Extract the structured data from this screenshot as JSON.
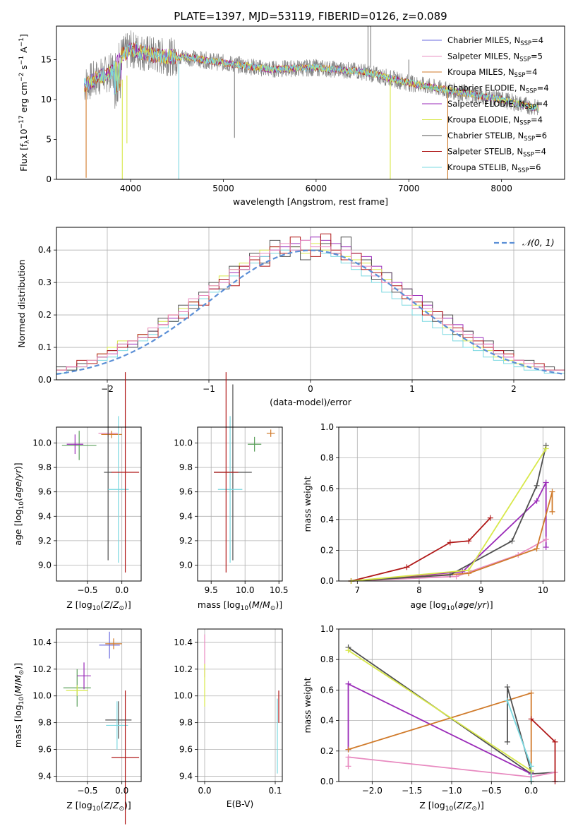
{
  "figure_title": "PLATE=1397, MJD=53119, FIBERID=0126, z=0.089",
  "colors": {
    "chabrier_miles": "#6a6adf",
    "salpeter_miles": "#e88ac0",
    "kroupa_miles": "#d07a2a",
    "chabrier_elodie": "#5aa05a",
    "salpeter_elodie": "#9a2ab8",
    "kroupa_elodie": "#d8e84a",
    "chabrier_stelib": "#505050",
    "salpeter_stelib": "#b01818",
    "kroupa_stelib": "#7ad8e0",
    "data_gray": "#808080",
    "normal_curve": "#5b8fd6"
  },
  "chart_data": [
    {
      "type": "line",
      "title": "PLATE=1397, MJD=53119, FIBERID=0126, z=0.089",
      "xlabel": "wavelength [Angstrom, rest frame]",
      "ylabel": "Flux [f_λ 10^-17 erg cm^-2 s^-1 A^-1]",
      "xlim": [
        3200,
        8680
      ],
      "ylim": [
        0,
        19.2
      ],
      "xticks": [
        "4000",
        "5000",
        "6000",
        "7000",
        "8000"
      ],
      "yticks": [
        "0",
        "5",
        "10",
        "15"
      ],
      "grid": false,
      "legend_position": "top-right",
      "legend": [
        {
          "label": "Chabrier MILES, N",
          "sub": "SSP",
          "suffix": "=4"
        },
        {
          "label": "Salpeter MILES, N",
          "sub": "SSP",
          "suffix": "=5"
        },
        {
          "label": "Kroupa MILES, N",
          "sub": "SSP",
          "suffix": "=4"
        },
        {
          "label": "Chabrier ELODIE, N",
          "sub": "SSP",
          "suffix": "=4"
        },
        {
          "label": "Salpeter ELODIE, N",
          "sub": "SSP",
          "suffix": "=4"
        },
        {
          "label": "Kroupa ELODIE, N",
          "sub": "SSP",
          "suffix": "=4"
        },
        {
          "label": "Chabrier STELIB, N",
          "sub": "SSP",
          "suffix": "=6"
        },
        {
          "label": "Salpeter STELIB, N",
          "sub": "SSP",
          "suffix": "=4"
        },
        {
          "label": "Kroupa STELIB, N",
          "sub": "SSP",
          "suffix": "=6"
        }
      ],
      "spectrum_outline": {
        "x": [
          3500,
          3600,
          3800,
          3900,
          4000,
          4100,
          4300,
          4600,
          5000,
          5500,
          6000,
          6500,
          7000,
          7500,
          8000,
          8400
        ],
        "y": [
          11.8,
          12.5,
          13.5,
          15.5,
          16.3,
          16.0,
          15.4,
          15.3,
          14.6,
          13.8,
          14.0,
          13.5,
          12.1,
          11.0,
          10.0,
          8.9
        ]
      }
    },
    {
      "type": "line",
      "xlabel": "(data-model)/error",
      "ylabel": "Normed distribution",
      "xlim": [
        -2.5,
        2.5
      ],
      "ylim": [
        0,
        0.47
      ],
      "xticks": [
        "−2",
        "−1",
        "0",
        "1",
        "2"
      ],
      "yticks": [
        "0.0",
        "0.1",
        "0.2",
        "0.3",
        "0.4"
      ],
      "grid": true,
      "legend_position": "top-right",
      "legend": [
        "𝒩(0, 1)"
      ],
      "bin_width": 0.1,
      "series": [
        {
          "values": [
            0.03,
            0.04,
            0.05,
            0.06,
            0.07,
            0.08,
            0.1,
            0.11,
            0.13,
            0.15,
            0.17,
            0.19,
            0.21,
            0.23,
            0.26,
            0.28,
            0.3,
            0.33,
            0.35,
            0.37,
            0.38,
            0.4,
            0.41,
            0.42,
            0.43,
            0.44,
            0.43,
            0.42,
            0.41,
            0.39,
            0.38,
            0.35,
            0.33,
            0.3,
            0.28,
            0.26,
            0.23,
            0.21,
            0.19,
            0.17,
            0.15,
            0.13,
            0.11,
            0.09,
            0.07,
            0.06,
            0.05,
            0.04,
            0.03,
            0.03
          ]
        },
        {
          "values": [
            0.03,
            0.03,
            0.04,
            0.06,
            0.08,
            0.1,
            0.12,
            0.12,
            0.14,
            0.16,
            0.18,
            0.2,
            0.22,
            0.24,
            0.26,
            0.29,
            0.32,
            0.34,
            0.36,
            0.38,
            0.4,
            0.41,
            0.42,
            0.41,
            0.39,
            0.42,
            0.4,
            0.39,
            0.38,
            0.37,
            0.36,
            0.34,
            0.31,
            0.28,
            0.25,
            0.23,
            0.21,
            0.19,
            0.16,
            0.14,
            0.12,
            0.1,
            0.09,
            0.07,
            0.06,
            0.05,
            0.04,
            0.04,
            0.03,
            0.03
          ]
        },
        {
          "values": [
            0.02,
            0.03,
            0.04,
            0.05,
            0.06,
            0.07,
            0.09,
            0.1,
            0.12,
            0.14,
            0.16,
            0.18,
            0.2,
            0.23,
            0.25,
            0.27,
            0.3,
            0.32,
            0.34,
            0.36,
            0.38,
            0.39,
            0.4,
            0.4,
            0.4,
            0.4,
            0.39,
            0.38,
            0.36,
            0.34,
            0.32,
            0.3,
            0.27,
            0.25,
            0.23,
            0.2,
            0.18,
            0.16,
            0.14,
            0.12,
            0.1,
            0.09,
            0.07,
            0.06,
            0.05,
            0.04,
            0.03,
            0.03,
            0.02,
            0.02
          ]
        },
        {
          "values": [
            0.04,
            0.03,
            0.05,
            0.05,
            0.07,
            0.09,
            0.11,
            0.1,
            0.13,
            0.15,
            0.19,
            0.18,
            0.23,
            0.22,
            0.27,
            0.3,
            0.28,
            0.35,
            0.34,
            0.39,
            0.36,
            0.43,
            0.38,
            0.41,
            0.37,
            0.4,
            0.42,
            0.39,
            0.44,
            0.36,
            0.37,
            0.31,
            0.33,
            0.27,
            0.28,
            0.22,
            0.24,
            0.18,
            0.2,
            0.14,
            0.15,
            0.11,
            0.12,
            0.08,
            0.09,
            0.06,
            0.06,
            0.04,
            0.04,
            0.03
          ]
        },
        {
          "values": [
            0.03,
            0.04,
            0.06,
            0.05,
            0.08,
            0.09,
            0.1,
            0.12,
            0.14,
            0.13,
            0.17,
            0.2,
            0.19,
            0.24,
            0.23,
            0.28,
            0.31,
            0.29,
            0.35,
            0.37,
            0.35,
            0.41,
            0.39,
            0.44,
            0.4,
            0.38,
            0.45,
            0.4,
            0.37,
            0.39,
            0.34,
            0.33,
            0.3,
            0.29,
            0.25,
            0.24,
            0.2,
            0.21,
            0.17,
            0.16,
            0.13,
            0.12,
            0.1,
            0.09,
            0.08,
            0.06,
            0.05,
            0.05,
            0.03,
            0.03
          ]
        },
        {
          "values": [
            0.03,
            0.04,
            0.04,
            0.06,
            0.07,
            0.08,
            0.11,
            0.12,
            0.13,
            0.16,
            0.17,
            0.2,
            0.21,
            0.25,
            0.26,
            0.29,
            0.3,
            0.34,
            0.34,
            0.38,
            0.39,
            0.4,
            0.42,
            0.4,
            0.43,
            0.41,
            0.41,
            0.39,
            0.4,
            0.35,
            0.35,
            0.32,
            0.3,
            0.28,
            0.26,
            0.22,
            0.22,
            0.19,
            0.17,
            0.15,
            0.14,
            0.11,
            0.11,
            0.08,
            0.07,
            0.06,
            0.05,
            0.04,
            0.03,
            0.03
          ]
        }
      ],
      "normal_curve": {
        "mu": 0,
        "sigma": 1
      }
    },
    {
      "type": "scatter",
      "xlabel": "Z [log10(Z/Z⊙)]",
      "ylabel": "age [log10(age/yr)]",
      "xlim": [
        -0.95,
        0.28
      ],
      "ylim": [
        8.87,
        10.13
      ],
      "xticks": [
        "−0.5",
        "0.0"
      ],
      "yticks": [
        "9.0",
        "9.2",
        "9.4",
        "9.6",
        "9.8",
        "10.0"
      ],
      "grid": true,
      "points": [
        {
          "x": -0.62,
          "y": 9.98,
          "xerr": 0.25,
          "yerr": 0.12
        },
        {
          "x": -0.68,
          "y": 9.99,
          "xerr": 0.12,
          "yerr": 0.08
        },
        {
          "x": -0.2,
          "y": 10.08,
          "xerr": 0.14,
          "yerr": 0.03
        },
        {
          "x": -0.15,
          "y": 10.07,
          "xerr": 0.15,
          "yerr": 0.03
        },
        {
          "x": -0.2,
          "y": 9.76,
          "xerr": 0.06,
          "yerr": 0.72
        },
        {
          "x": -0.05,
          "y": 9.62,
          "xerr": 0.15,
          "yerr": 0.6
        },
        {
          "x": 0.05,
          "y": 9.76,
          "xerr": 0.2,
          "yerr": 0.82
        }
      ]
    },
    {
      "type": "scatter",
      "xlabel": "mass [log10(M/M⊙)]",
      "ylabel": "",
      "xlim": [
        9.3,
        10.55
      ],
      "ylim": [
        8.87,
        10.13
      ],
      "xticks": [
        "9.5",
        "10.0",
        "10.5"
      ],
      "yticks": [
        "9.0",
        "9.2",
        "9.4",
        "9.6",
        "9.8",
        "10.0"
      ],
      "grid": true,
      "points": [
        {
          "x": 10.14,
          "y": 9.99,
          "xerr": 0.1,
          "yerr": 0.06
        },
        {
          "x": 10.38,
          "y": 10.08,
          "xerr": 0.06,
          "yerr": 0.03
        },
        {
          "x": 9.82,
          "y": 9.76,
          "xerr": 0.28,
          "yerr": 0.72
        },
        {
          "x": 9.78,
          "y": 9.62,
          "xerr": 0.18,
          "yerr": 0.6
        },
        {
          "x": 9.72,
          "y": 9.76,
          "xerr": 0.18,
          "yerr": 0.82
        }
      ]
    },
    {
      "type": "line",
      "xlabel": "age [log10(age/yr)]",
      "ylabel": "mass weight",
      "xlim": [
        6.7,
        10.35
      ],
      "ylim": [
        0,
        1.0
      ],
      "xticks": [
        "7",
        "8",
        "9",
        "10"
      ],
      "yticks": [
        "0.0",
        "0.2",
        "0.4",
        "0.6",
        "0.8",
        "1.0"
      ],
      "grid": true,
      "series": [
        {
          "x": [
            6.9,
            7.8,
            8.5,
            8.8,
            9.15
          ],
          "y": [
            0.0,
            0.09,
            0.25,
            0.26,
            0.41
          ]
        },
        {
          "x": [
            6.9,
            8.7,
            9.9,
            10.05,
            10.05
          ],
          "y": [
            0.0,
            0.06,
            0.52,
            0.64,
            0.22
          ]
        },
        {
          "x": [
            6.9,
            8.6,
            9.6,
            10.05
          ],
          "y": [
            0.0,
            0.03,
            0.17,
            0.27
          ]
        },
        {
          "x": [
            6.9,
            8.8,
            9.9,
            10.15,
            10.15
          ],
          "y": [
            0.0,
            0.05,
            0.21,
            0.58,
            0.45
          ]
        },
        {
          "x": [
            6.9,
            8.5,
            9.5,
            9.9,
            10.05
          ],
          "y": [
            0.0,
            0.04,
            0.26,
            0.62,
            0.88
          ]
        },
        {
          "x": [
            6.9,
            8.8,
            10.05
          ],
          "y": [
            0.0,
            0.07,
            0.86
          ]
        }
      ]
    },
    {
      "type": "scatter",
      "xlabel": "Z [log10(Z/Z⊙)]",
      "ylabel": "mass [log10(M/M⊙)]",
      "xlim": [
        -0.95,
        0.28
      ],
      "ylim": [
        9.36,
        10.5
      ],
      "xticks": [
        "−0.5",
        "0.0"
      ],
      "yticks": [
        "9.4",
        "9.6",
        "9.8",
        "10.0",
        "10.2",
        "10.4"
      ],
      "grid": true,
      "points": [
        {
          "x": -0.65,
          "y": 10.06,
          "xerr": 0.2,
          "yerr": 0.14
        },
        {
          "x": -0.55,
          "y": 10.15,
          "xerr": 0.1,
          "yerr": 0.1
        },
        {
          "x": -0.65,
          "y": 10.04,
          "xerr": 0.16,
          "yerr": 0.04
        },
        {
          "x": -0.18,
          "y": 10.38,
          "xerr": 0.15,
          "yerr": 0.1
        },
        {
          "x": -0.12,
          "y": 10.39,
          "xerr": 0.12,
          "yerr": 0.04
        },
        {
          "x": -0.05,
          "y": 9.82,
          "xerr": 0.19,
          "yerr": 0.14
        },
        {
          "x": -0.07,
          "y": 9.78,
          "xerr": 0.16,
          "yerr": 0.18
        },
        {
          "x": 0.05,
          "y": 9.54,
          "xerr": 0.2,
          "yerr": 0.5
        }
      ]
    },
    {
      "type": "scatter",
      "xlabel": "E(B-V)",
      "ylabel": "",
      "xlim": [
        -0.01,
        0.11
      ],
      "ylim": [
        9.36,
        10.5
      ],
      "xticks": [
        "0.0",
        "0.1"
      ],
      "yticks": [
        "9.4",
        "9.6",
        "9.8",
        "10.0",
        "10.2",
        "10.4"
      ],
      "grid": true,
      "points": [
        {
          "x": 0.0,
          "y": 10.3,
          "yerr": 0.16
        },
        {
          "x": 0.0,
          "y": 10.08,
          "yerr": 0.16
        },
        {
          "x": 0.103,
          "y": 9.7,
          "yerr": 0.28
        },
        {
          "x": 0.105,
          "y": 9.92,
          "yerr": 0.12
        }
      ]
    },
    {
      "type": "line",
      "xlabel": "Z [log10(Z/Z⊙)]",
      "ylabel": "mass weight",
      "xlim": [
        -2.42,
        0.42
      ],
      "ylim": [
        0,
        1.0
      ],
      "xticks": [
        "−2.0",
        "−1.5",
        "−1.0",
        "−0.5",
        "0.0"
      ],
      "yticks": [
        "0.0",
        "0.2",
        "0.4",
        "0.6",
        "0.8",
        "1.0"
      ],
      "grid": true,
      "series": [
        {
          "x": [
            -2.3,
            0.0,
            0.3
          ],
          "y": [
            0.88,
            0.05,
            0.06
          ]
        },
        {
          "x": [
            -2.3,
            -2.3,
            0.0
          ],
          "y": [
            0.21,
            0.64,
            0.05
          ]
        },
        {
          "x": [
            -2.3,
            -2.3,
            0.0,
            0.3,
            0.3
          ],
          "y": [
            0.1,
            0.16,
            0.03,
            0.06,
            0.0
          ]
        },
        {
          "x": [
            -2.3,
            0.0,
            0.0
          ],
          "y": [
            0.21,
            0.58,
            0.0
          ]
        },
        {
          "x": [
            -0.3,
            -0.3,
            0.0,
            0.0
          ],
          "y": [
            0.26,
            0.62,
            0.06,
            0.0
          ]
        },
        {
          "x": [
            -0.3,
            0.0,
            0.0
          ],
          "y": [
            0.53,
            0.1,
            0.0
          ]
        },
        {
          "x": [
            0.0,
            0.3,
            0.3
          ],
          "y": [
            0.41,
            0.26,
            0.0
          ]
        },
        {
          "x": [
            -2.3,
            0.0
          ],
          "y": [
            0.86,
            0.07
          ]
        }
      ]
    }
  ]
}
